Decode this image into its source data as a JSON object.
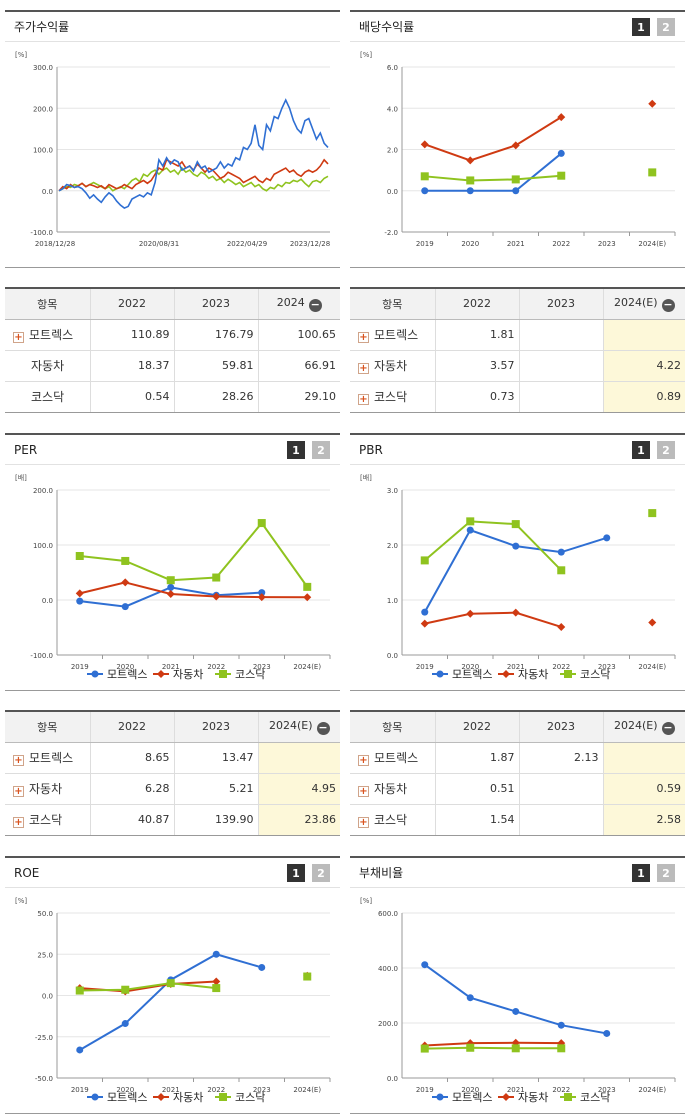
{
  "legend": [
    "모트렉스",
    "자동차",
    "코스닥"
  ],
  "colors": {
    "s1": "#2f6fd3",
    "s2": "#cf3a12",
    "s3": "#8fc31f"
  },
  "panels": {
    "stock": {
      "title": "주가수익률"
    },
    "dividend": {
      "title": "배당수익률"
    },
    "per": {
      "title": "PER"
    },
    "pbr": {
      "title": "PBR"
    },
    "roe": {
      "title": "ROE"
    },
    "debt": {
      "title": "부채비율"
    }
  },
  "tabs": {
    "one": "1",
    "two": "2"
  },
  "chart_data": [
    {
      "id": "stock",
      "type": "line",
      "unit": "[%]",
      "ylim": [
        -100,
        300
      ],
      "yticks": [
        "300.0",
        "200.0",
        "100.0",
        "0.0",
        "-100.0"
      ],
      "xticks": [
        "2018/12/28",
        "2020/08/31",
        "2022/04/29",
        "2023/12/28"
      ],
      "series": [
        {
          "name": "모트렉스",
          "values": [
            0,
            5,
            15,
            12,
            8,
            10,
            5,
            -5,
            -18,
            -10,
            -20,
            -28,
            -15,
            -5,
            -12,
            -25,
            -35,
            -42,
            -38,
            -20,
            -15,
            -10,
            -15,
            -5,
            -10,
            20,
            75,
            60,
            80,
            65,
            75,
            70,
            50,
            55,
            60,
            48,
            70,
            55,
            60,
            45,
            50,
            55,
            70,
            55,
            65,
            60,
            80,
            75,
            105,
            100,
            115,
            160,
            110,
            100,
            160,
            145,
            180,
            175,
            200,
            220,
            200,
            170,
            150,
            140,
            170,
            175,
            150,
            125,
            140,
            115,
            105
          ]
        },
        {
          "name": "자동차",
          "values": [
            0,
            10,
            5,
            15,
            8,
            12,
            18,
            10,
            15,
            12,
            8,
            12,
            5,
            15,
            10,
            5,
            8,
            15,
            10,
            5,
            15,
            20,
            25,
            18,
            25,
            40,
            55,
            50,
            75,
            70,
            65,
            60,
            70,
            55,
            60,
            50,
            65,
            55,
            45,
            55,
            50,
            40,
            30,
            35,
            45,
            40,
            35,
            30,
            20,
            25,
            30,
            35,
            25,
            20,
            30,
            25,
            40,
            45,
            50,
            55,
            45,
            50,
            40,
            35,
            45,
            50,
            45,
            50,
            60,
            75,
            65
          ]
        },
        {
          "name": "코스닥",
          "values": [
            0,
            5,
            10,
            8,
            15,
            12,
            18,
            10,
            15,
            20,
            15,
            10,
            5,
            10,
            0,
            5,
            10,
            5,
            15,
            25,
            30,
            22,
            40,
            35,
            45,
            50,
            40,
            50,
            55,
            45,
            50,
            40,
            55,
            45,
            50,
            40,
            35,
            45,
            40,
            30,
            35,
            25,
            30,
            20,
            28,
            22,
            15,
            20,
            10,
            15,
            20,
            10,
            15,
            5,
            0,
            8,
            5,
            15,
            10,
            20,
            18,
            25,
            22,
            28,
            18,
            10,
            22,
            25,
            20,
            30,
            35
          ]
        }
      ]
    },
    {
      "id": "dividend",
      "type": "line",
      "unit": "[%]",
      "ylim": [
        -2,
        6
      ],
      "yticks": [
        "6.0",
        "4.0",
        "2.0",
        "0.0",
        "-2.0"
      ],
      "categories": [
        "2019",
        "2020",
        "2021",
        "2022",
        "2023",
        "2024(E)"
      ],
      "series": [
        {
          "name": "모트렉스",
          "values": [
            0,
            0,
            0,
            1.81,
            null,
            null
          ]
        },
        {
          "name": "자동차",
          "values": [
            2.25,
            1.47,
            2.2,
            3.57,
            null,
            4.22
          ]
        },
        {
          "name": "코스닥",
          "values": [
            0.7,
            0.5,
            0.55,
            0.73,
            null,
            0.89
          ]
        }
      ]
    },
    {
      "id": "per",
      "type": "line",
      "unit": "[배]",
      "ylim": [
        -100,
        200
      ],
      "yticks": [
        "200.0",
        "100.0",
        "0.0",
        "-100.0"
      ],
      "categories": [
        "2019",
        "2020",
        "2021",
        "2022",
        "2023",
        "2024(E)"
      ],
      "series": [
        {
          "name": "모트렉스",
          "values": [
            -2,
            -12,
            23,
            8.65,
            13.47,
            null
          ]
        },
        {
          "name": "자동차",
          "values": [
            12,
            32,
            11,
            6.28,
            5.21,
            4.95
          ]
        },
        {
          "name": "코스닥",
          "values": [
            80,
            71,
            36,
            40.87,
            139.9,
            23.86
          ]
        }
      ]
    },
    {
      "id": "pbr",
      "type": "line",
      "unit": "[배]",
      "ylim": [
        0,
        3
      ],
      "yticks": [
        "3.0",
        "2.0",
        "1.0",
        "0.0"
      ],
      "categories": [
        "2019",
        "2020",
        "2021",
        "2022",
        "2023",
        "2024(E)"
      ],
      "series": [
        {
          "name": "모트렉스",
          "values": [
            0.78,
            2.27,
            1.98,
            1.87,
            2.13,
            null
          ]
        },
        {
          "name": "자동차",
          "values": [
            0.57,
            0.75,
            0.77,
            0.51,
            null,
            0.59
          ]
        },
        {
          "name": "코스닥",
          "values": [
            1.72,
            2.43,
            2.38,
            1.54,
            null,
            2.58
          ]
        }
      ]
    },
    {
      "id": "roe",
      "type": "line",
      "unit": "[%]",
      "ylim": [
        -50,
        50
      ],
      "yticks": [
        "50.0",
        "25.0",
        "0.0",
        "-25.0",
        "-50.0"
      ],
      "categories": [
        "2019",
        "2020",
        "2021",
        "2022",
        "2023",
        "2024(E)"
      ],
      "series": [
        {
          "name": "모트렉스",
          "values": [
            -33,
            -17,
            9.5,
            25,
            17,
            null
          ]
        },
        {
          "name": "자동차",
          "values": [
            4.5,
            2.5,
            7,
            8.5,
            null,
            12
          ]
        },
        {
          "name": "코스닥",
          "values": [
            3,
            3.5,
            7.5,
            4.5,
            null,
            11.5
          ]
        }
      ]
    },
    {
      "id": "debt",
      "type": "line",
      "unit": "[%]",
      "ylim": [
        0,
        600
      ],
      "yticks": [
        "600.0",
        "400.0",
        "200.0",
        "0.0"
      ],
      "categories": [
        "2019",
        "2020",
        "2021",
        "2022",
        "2023",
        "2024(E)"
      ],
      "series": [
        {
          "name": "모트렉스",
          "values": [
            412,
            292,
            242,
            192,
            162,
            null
          ]
        },
        {
          "name": "자동차",
          "values": [
            118,
            127,
            128,
            127,
            null,
            null
          ]
        },
        {
          "name": "코스닥",
          "values": [
            107,
            110,
            108,
            108,
            null,
            null
          ]
        }
      ]
    }
  ],
  "tables": {
    "stock": {
      "headers": [
        "항목",
        "2022",
        "2023",
        "2024"
      ],
      "rows": [
        {
          "name": "모트렉스",
          "plus": true,
          "values": [
            "110.89",
            "176.79",
            "100.65"
          ]
        },
        {
          "name": "자동차",
          "plus": false,
          "values": [
            "18.37",
            "59.81",
            "66.91"
          ]
        },
        {
          "name": "코스닥",
          "plus": false,
          "values": [
            "0.54",
            "28.26",
            "29.10"
          ]
        }
      ]
    },
    "dividend": {
      "headers": [
        "항목",
        "2022",
        "2023",
        "2024(E)"
      ],
      "rows": [
        {
          "name": "모트렉스",
          "plus": true,
          "values": [
            "1.81",
            "",
            ""
          ]
        },
        {
          "name": "자동차",
          "plus": true,
          "values": [
            "3.57",
            "",
            "4.22"
          ]
        },
        {
          "name": "코스닥",
          "plus": true,
          "values": [
            "0.73",
            "",
            "0.89"
          ]
        }
      ]
    },
    "per": {
      "headers": [
        "항목",
        "2022",
        "2023",
        "2024(E)"
      ],
      "rows": [
        {
          "name": "모트렉스",
          "plus": true,
          "values": [
            "8.65",
            "13.47",
            ""
          ]
        },
        {
          "name": "자동차",
          "plus": true,
          "values": [
            "6.28",
            "5.21",
            "4.95"
          ]
        },
        {
          "name": "코스닥",
          "plus": true,
          "values": [
            "40.87",
            "139.90",
            "23.86"
          ]
        }
      ]
    },
    "pbr": {
      "headers": [
        "항목",
        "2022",
        "2023",
        "2024(E)"
      ],
      "rows": [
        {
          "name": "모트렉스",
          "plus": true,
          "values": [
            "1.87",
            "2.13",
            ""
          ]
        },
        {
          "name": "자동차",
          "plus": true,
          "values": [
            "0.51",
            "",
            "0.59"
          ]
        },
        {
          "name": "코스닥",
          "plus": true,
          "values": [
            "1.54",
            "",
            "2.58"
          ]
        }
      ]
    }
  }
}
